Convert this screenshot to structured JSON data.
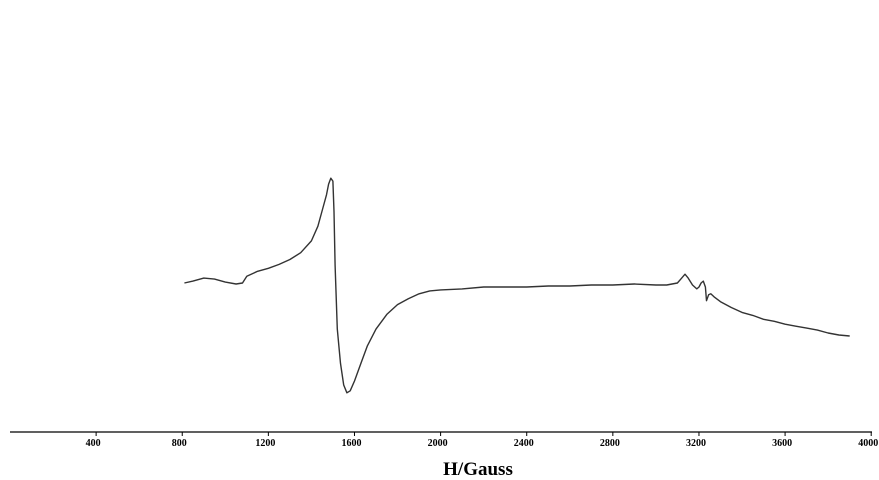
{
  "chart_data": {
    "type": "line",
    "title": "",
    "xlabel": "H/Gauss",
    "ylabel": "",
    "xlim": [
      0,
      4000
    ],
    "ylim": [
      -1.15,
      1.2
    ],
    "x_ticks": [
      400,
      800,
      1200,
      1600,
      2000,
      2400,
      2800,
      3200,
      3600,
      4000
    ],
    "grid": false,
    "legend": "none",
    "y_axis_shown": false,
    "line_color": "#333333",
    "series": [
      {
        "x": [
          810,
          850,
          900,
          950,
          1000,
          1050,
          1080,
          1100,
          1150,
          1200,
          1250,
          1300,
          1350,
          1400,
          1430,
          1450,
          1470,
          1480,
          1490,
          1500,
          1505,
          1510,
          1520,
          1535,
          1550,
          1565,
          1580,
          1600,
          1630,
          1660,
          1700,
          1750,
          1800,
          1850,
          1900,
          1950,
          2000,
          2100,
          2200,
          2300,
          2400,
          2500,
          2600,
          2700,
          2800,
          2900,
          3000,
          3050,
          3100,
          3120,
          3135,
          3150,
          3170,
          3190,
          3200,
          3210,
          3220,
          3230,
          3235,
          3245,
          3255,
          3270,
          3300,
          3350,
          3400,
          3450,
          3500,
          3550,
          3600,
          3650,
          3700,
          3750,
          3800,
          3850,
          3900
        ],
        "y": [
          0.02,
          0.04,
          0.07,
          0.06,
          0.03,
          0.01,
          0.02,
          0.09,
          0.14,
          0.17,
          0.21,
          0.26,
          0.33,
          0.45,
          0.6,
          0.76,
          0.92,
          1.03,
          1.09,
          1.06,
          0.75,
          0.2,
          -0.45,
          -0.8,
          -1.02,
          -1.1,
          -1.08,
          -0.98,
          -0.8,
          -0.62,
          -0.45,
          -0.3,
          -0.2,
          -0.14,
          -0.09,
          -0.06,
          -0.05,
          -0.04,
          -0.02,
          -0.02,
          -0.02,
          -0.01,
          -0.01,
          0.0,
          0.0,
          0.01,
          0.0,
          0.0,
          0.02,
          0.07,
          0.11,
          0.07,
          0.0,
          -0.04,
          -0.02,
          0.02,
          0.04,
          -0.02,
          -0.16,
          -0.1,
          -0.09,
          -0.12,
          -0.17,
          -0.23,
          -0.28,
          -0.31,
          -0.35,
          -0.37,
          -0.4,
          -0.42,
          -0.44,
          -0.46,
          -0.49,
          -0.51,
          -0.52
        ]
      }
    ]
  }
}
